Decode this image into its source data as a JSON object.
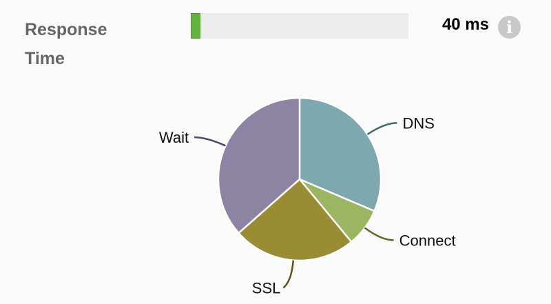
{
  "metric": {
    "label": "Response Time",
    "value_text": "40 ms",
    "progress_percent": 4.5,
    "bar_color": "#64b33c",
    "info_icon": "info-icon"
  },
  "chart_data": {
    "type": "pie",
    "categories": [
      "DNS",
      "Connect",
      "SSL",
      "Wait"
    ],
    "values": [
      31.4,
      7.6,
      24.5,
      36.5
    ],
    "colors": [
      "#7ea8b0",
      "#9bb561",
      "#9a8c34",
      "#8d84a4"
    ],
    "line_colors": [
      "#3f6a72",
      "#5d6a26",
      "#5d5318",
      "#4c4868"
    ],
    "start_angle": "top, clockwise"
  }
}
